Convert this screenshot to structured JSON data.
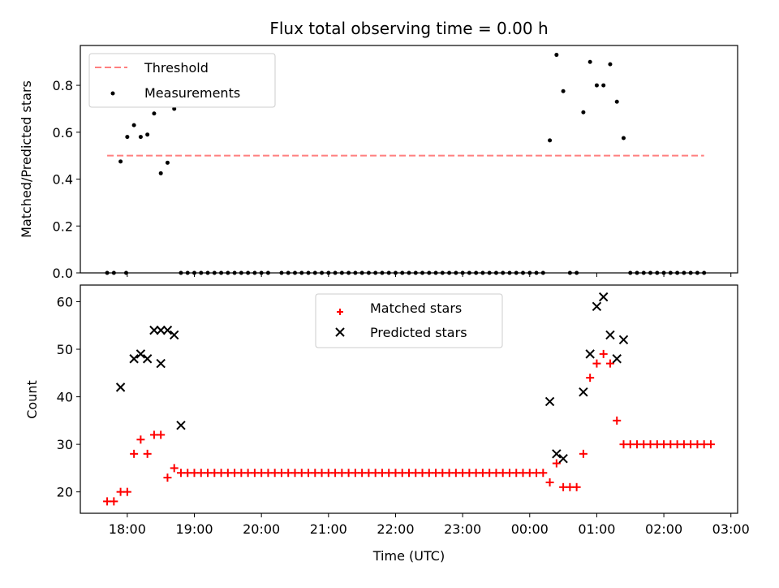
{
  "title": "Flux total observing time = 0.00 h",
  "chart_data": [
    {
      "type": "scatter",
      "ylabel": "Matched/Predicted stars",
      "xlabel": "",
      "ylim": [
        0,
        0.97
      ],
      "yticks": [
        "0.0",
        "0.2",
        "0.4",
        "0.6",
        "0.8"
      ],
      "ytick_values": [
        0,
        0.2,
        0.4,
        0.6,
        0.8
      ],
      "legend": {
        "placement": "upper left",
        "entries": [
          "Threshold",
          "Measurements"
        ]
      },
      "threshold": {
        "name": "Threshold",
        "value": 0.5,
        "color": "#ff7f7f",
        "x_start": "17:42",
        "x_end": "02:36"
      },
      "series": [
        {
          "name": "Measurements",
          "color": "#000000",
          "points": [
            [
              "17:42",
              0
            ],
            [
              "17:48",
              0
            ],
            [
              "17:54",
              0.475
            ],
            [
              "17:59",
              0
            ],
            [
              "18:00",
              0.58
            ],
            [
              "18:06",
              0.63
            ],
            [
              "18:12",
              0.58
            ],
            [
              "18:18",
              0.59
            ],
            [
              "18:24",
              0.68
            ],
            [
              "18:30",
              0.425
            ],
            [
              "18:36",
              0.47
            ],
            [
              "18:42",
              0.7
            ],
            [
              "18:48",
              0
            ],
            [
              "18:54",
              0
            ],
            [
              "19:00",
              0
            ],
            [
              "19:06",
              0
            ],
            [
              "19:12",
              0
            ],
            [
              "19:18",
              0
            ],
            [
              "19:24",
              0
            ],
            [
              "19:30",
              0
            ],
            [
              "19:36",
              0
            ],
            [
              "19:42",
              0
            ],
            [
              "19:48",
              0
            ],
            [
              "19:54",
              0
            ],
            [
              "20:00",
              0
            ],
            [
              "20:06",
              0
            ],
            [
              "20:18",
              0
            ],
            [
              "20:24",
              0
            ],
            [
              "20:30",
              0
            ],
            [
              "20:36",
              0
            ],
            [
              "20:42",
              0
            ],
            [
              "20:48",
              0
            ],
            [
              "20:54",
              0
            ],
            [
              "21:00",
              0
            ],
            [
              "21:06",
              0
            ],
            [
              "21:12",
              0
            ],
            [
              "21:18",
              0
            ],
            [
              "21:24",
              0
            ],
            [
              "21:30",
              0
            ],
            [
              "21:36",
              0
            ],
            [
              "21:42",
              0
            ],
            [
              "21:48",
              0
            ],
            [
              "21:54",
              0
            ],
            [
              "22:00",
              0
            ],
            [
              "22:06",
              0
            ],
            [
              "22:12",
              0
            ],
            [
              "22:18",
              0
            ],
            [
              "22:24",
              0
            ],
            [
              "22:30",
              0
            ],
            [
              "22:36",
              0
            ],
            [
              "22:42",
              0
            ],
            [
              "22:48",
              0
            ],
            [
              "22:54",
              0
            ],
            [
              "23:00",
              0
            ],
            [
              "23:06",
              0
            ],
            [
              "23:12",
              0
            ],
            [
              "23:18",
              0
            ],
            [
              "23:24",
              0
            ],
            [
              "23:30",
              0
            ],
            [
              "23:36",
              0
            ],
            [
              "23:42",
              0
            ],
            [
              "23:48",
              0
            ],
            [
              "23:54",
              0
            ],
            [
              "00:00",
              0
            ],
            [
              "00:06",
              0
            ],
            [
              "00:12",
              0
            ],
            [
              "00:18",
              0.565
            ],
            [
              "00:24",
              0.93
            ],
            [
              "00:30",
              0.775
            ],
            [
              "00:36",
              0
            ],
            [
              "00:42",
              0
            ],
            [
              "00:48",
              0.685
            ],
            [
              "00:54",
              0.9
            ],
            [
              "01:00",
              0.8
            ],
            [
              "01:06",
              0.8
            ],
            [
              "01:12",
              0.89
            ],
            [
              "01:18",
              0.73
            ],
            [
              "01:24",
              0.575
            ],
            [
              "01:30",
              0
            ],
            [
              "01:36",
              0
            ],
            [
              "01:42",
              0
            ],
            [
              "01:48",
              0
            ],
            [
              "01:54",
              0
            ],
            [
              "02:00",
              0
            ],
            [
              "02:06",
              0
            ],
            [
              "02:12",
              0
            ],
            [
              "02:18",
              0
            ],
            [
              "02:24",
              0
            ],
            [
              "02:30",
              0
            ],
            [
              "02:36",
              0
            ]
          ]
        }
      ]
    },
    {
      "type": "scatter",
      "xlabel": "Time (UTC)",
      "ylabel": "Count",
      "xlim": [
        "17:18",
        "03:06"
      ],
      "xticks": [
        "18:00",
        "19:00",
        "20:00",
        "21:00",
        "22:00",
        "23:00",
        "00:00",
        "01:00",
        "02:00",
        "03:00"
      ],
      "ylim": [
        15.5,
        63.5
      ],
      "yticks": [
        "20",
        "30",
        "40",
        "50",
        "60"
      ],
      "ytick_values": [
        20,
        30,
        40,
        50,
        60
      ],
      "legend": {
        "placement": "upper center",
        "entries": [
          "Matched stars",
          "Predicted stars"
        ]
      },
      "series": [
        {
          "name": "Matched stars",
          "marker": "plus",
          "color": "#ff0000",
          "points": [
            [
              "17:42",
              18
            ],
            [
              "17:48",
              18
            ],
            [
              "17:54",
              20
            ],
            [
              "18:00",
              20
            ],
            [
              "18:06",
              28
            ],
            [
              "18:12",
              31
            ],
            [
              "18:18",
              28
            ],
            [
              "18:24",
              32
            ],
            [
              "18:30",
              32
            ],
            [
              "18:36",
              23
            ],
            [
              "18:42",
              25
            ],
            [
              "18:48",
              24
            ],
            [
              "18:54",
              24
            ],
            [
              "19:00",
              24
            ],
            [
              "19:06",
              24
            ],
            [
              "19:12",
              24
            ],
            [
              "19:18",
              24
            ],
            [
              "19:24",
              24
            ],
            [
              "19:30",
              24
            ],
            [
              "19:36",
              24
            ],
            [
              "19:42",
              24
            ],
            [
              "19:48",
              24
            ],
            [
              "19:54",
              24
            ],
            [
              "20:00",
              24
            ],
            [
              "20:06",
              24
            ],
            [
              "20:12",
              24
            ],
            [
              "20:18",
              24
            ],
            [
              "20:24",
              24
            ],
            [
              "20:30",
              24
            ],
            [
              "20:36",
              24
            ],
            [
              "20:42",
              24
            ],
            [
              "20:48",
              24
            ],
            [
              "20:54",
              24
            ],
            [
              "21:00",
              24
            ],
            [
              "21:06",
              24
            ],
            [
              "21:12",
              24
            ],
            [
              "21:18",
              24
            ],
            [
              "21:24",
              24
            ],
            [
              "21:30",
              24
            ],
            [
              "21:36",
              24
            ],
            [
              "21:42",
              24
            ],
            [
              "21:48",
              24
            ],
            [
              "21:54",
              24
            ],
            [
              "22:00",
              24
            ],
            [
              "22:06",
              24
            ],
            [
              "22:12",
              24
            ],
            [
              "22:18",
              24
            ],
            [
              "22:24",
              24
            ],
            [
              "22:30",
              24
            ],
            [
              "22:36",
              24
            ],
            [
              "22:42",
              24
            ],
            [
              "22:48",
              24
            ],
            [
              "22:54",
              24
            ],
            [
              "23:00",
              24
            ],
            [
              "23:06",
              24
            ],
            [
              "23:12",
              24
            ],
            [
              "23:18",
              24
            ],
            [
              "23:24",
              24
            ],
            [
              "23:30",
              24
            ],
            [
              "23:36",
              24
            ],
            [
              "23:42",
              24
            ],
            [
              "23:48",
              24
            ],
            [
              "23:54",
              24
            ],
            [
              "00:00",
              24
            ],
            [
              "00:06",
              24
            ],
            [
              "00:12",
              24
            ],
            [
              "00:18",
              22
            ],
            [
              "00:24",
              26
            ],
            [
              "00:30",
              21
            ],
            [
              "00:36",
              21
            ],
            [
              "00:42",
              21
            ],
            [
              "00:48",
              28
            ],
            [
              "00:54",
              44
            ],
            [
              "01:00",
              47
            ],
            [
              "01:06",
              49
            ],
            [
              "01:12",
              47
            ],
            [
              "01:18",
              35
            ],
            [
              "01:24",
              30
            ],
            [
              "01:30",
              30
            ],
            [
              "01:36",
              30
            ],
            [
              "01:42",
              30
            ],
            [
              "01:48",
              30
            ],
            [
              "01:54",
              30
            ],
            [
              "02:00",
              30
            ],
            [
              "02:06",
              30
            ],
            [
              "02:12",
              30
            ],
            [
              "02:18",
              30
            ],
            [
              "02:24",
              30
            ],
            [
              "02:30",
              30
            ],
            [
              "02:36",
              30
            ],
            [
              "02:42",
              30
            ]
          ]
        },
        {
          "name": "Predicted stars",
          "marker": "x",
          "color": "#000000",
          "points": [
            [
              "17:54",
              42
            ],
            [
              "18:06",
              48
            ],
            [
              "18:12",
              49
            ],
            [
              "18:18",
              48
            ],
            [
              "18:24",
              54
            ],
            [
              "18:30",
              54
            ],
            [
              "18:30",
              47
            ],
            [
              "18:36",
              54
            ],
            [
              "18:42",
              53
            ],
            [
              "18:48",
              34
            ],
            [
              "00:18",
              39
            ],
            [
              "00:24",
              28
            ],
            [
              "00:30",
              27
            ],
            [
              "00:48",
              41
            ],
            [
              "00:54",
              49
            ],
            [
              "01:00",
              59
            ],
            [
              "01:06",
              61
            ],
            [
              "01:12",
              53
            ],
            [
              "01:18",
              48
            ],
            [
              "01:24",
              52
            ]
          ]
        }
      ]
    }
  ]
}
